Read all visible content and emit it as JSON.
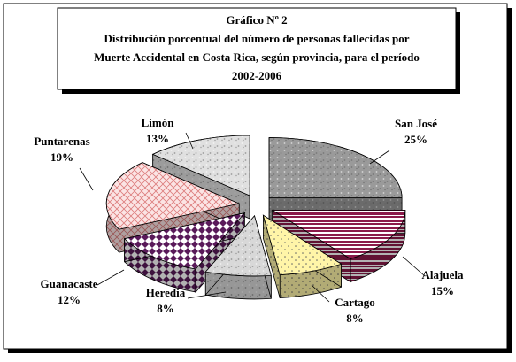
{
  "chart_data": {
    "type": "pie3d",
    "title": "Gráfico Nº 2",
    "subtitle": [
      "Distribución porcentual del número de personas fallecidas por",
      "Muerte Accidental en Costa Rica, según provincia, para el período",
      "2002-2006"
    ],
    "categories": [
      "San José",
      "Alajuela",
      "Cartago",
      "Heredia",
      "Guanacaste",
      "Puntarenas",
      "Limón"
    ],
    "values": [
      25,
      15,
      8,
      8,
      12,
      19,
      13
    ],
    "value_labels": [
      "25%",
      "15%",
      "8%",
      "8%",
      "12%",
      "19%",
      "13%"
    ],
    "colors": [
      "#9a9a9a",
      "#8b1a4a",
      "#fff5a8",
      "#d8d8d8",
      "#5a1a5a",
      "#f4b0b0",
      "#e0e0e0"
    ]
  }
}
